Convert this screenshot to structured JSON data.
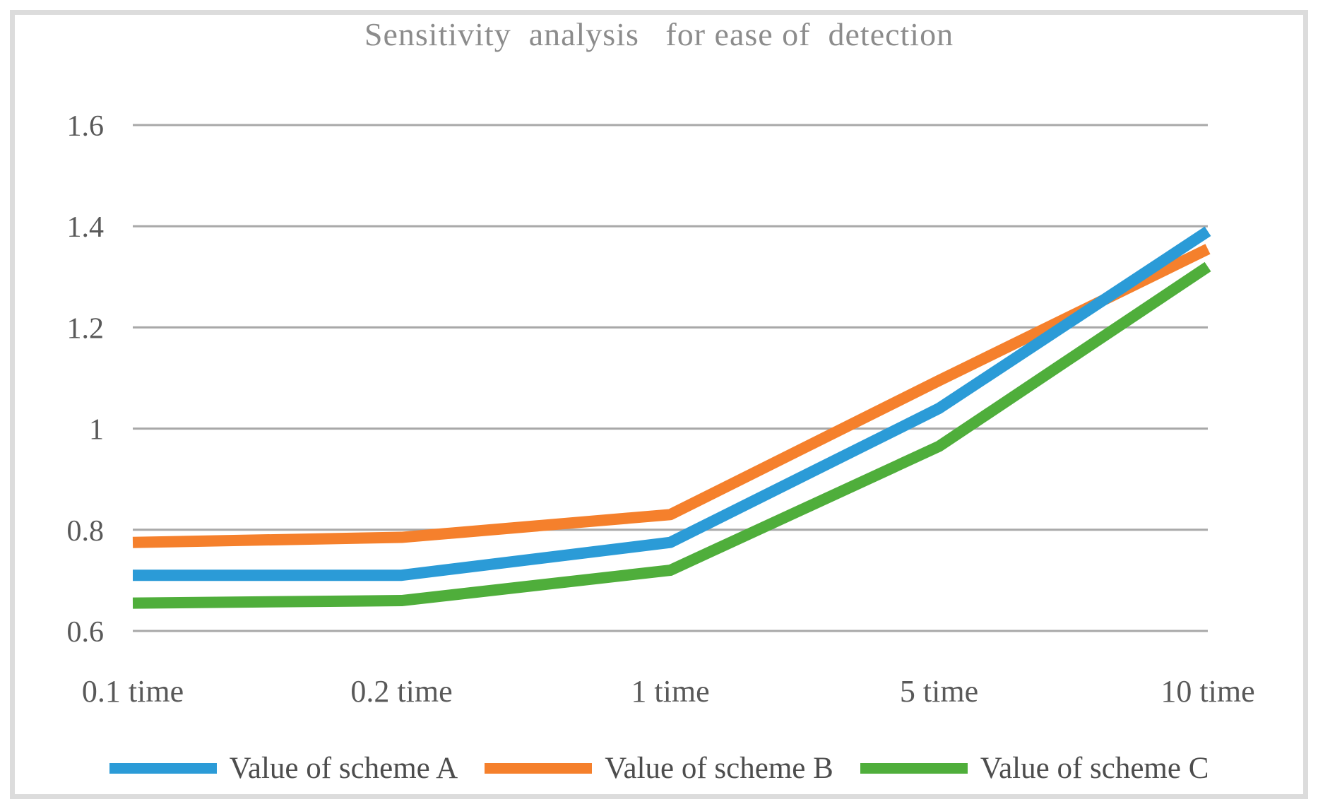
{
  "title": "Sensitivity  analysis   for ease of  detection",
  "chart_data": {
    "type": "line",
    "title": "Sensitivity analysis for ease of detection",
    "categories": [
      "0.1 time",
      "0.2 time",
      "1 time",
      "5 time",
      "10 time"
    ],
    "series": [
      {
        "name": "Value of scheme A",
        "color": "#2b9bd7",
        "values": [
          0.71,
          0.71,
          0.775,
          1.04,
          1.39
        ]
      },
      {
        "name": "Value of scheme B",
        "color": "#f5802c",
        "values": [
          0.775,
          0.785,
          0.83,
          1.095,
          1.355
        ]
      },
      {
        "name": "Value of scheme C",
        "color": "#4fae3b",
        "values": [
          0.655,
          0.66,
          0.72,
          0.965,
          1.32
        ]
      }
    ],
    "xlabel": "",
    "ylabel": "",
    "ylim": [
      0.6,
      1.6
    ],
    "yticks": [
      0.6,
      0.8,
      1,
      1.2,
      1.4,
      1.6
    ],
    "ytick_labels": [
      "0.6",
      "0.8",
      "1",
      "1.2",
      "1.4",
      "1.6"
    ],
    "grid": "horizontal",
    "legend_position": "bottom"
  },
  "colors": {
    "gridline": "#a8a8a8",
    "axis_text": "#595959",
    "title_text": "#8c8c8c",
    "legend_text": "#4d4d4d",
    "frame_border": "#dcdcdc",
    "background": "#ffffff"
  }
}
